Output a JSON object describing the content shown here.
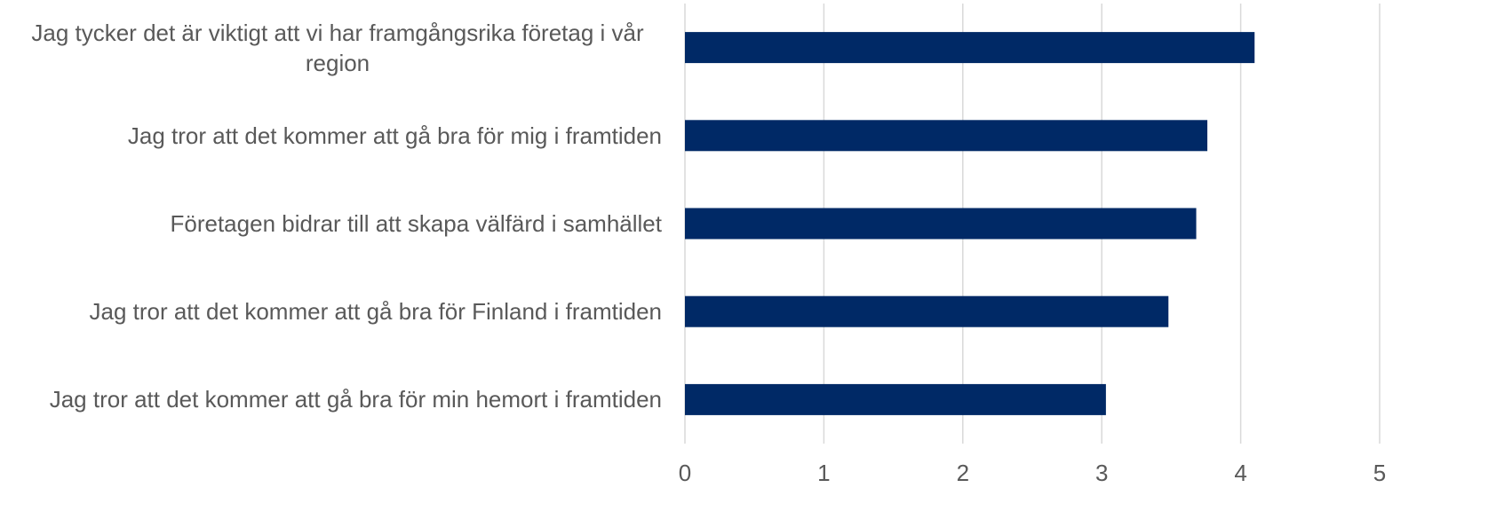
{
  "chart_data": {
    "type": "barh",
    "categories": [
      "Jag tycker det är viktigt att vi har framgångsrika företag i vår region",
      "Jag tror att det kommer att gå bra för mig i framtiden",
      "Företagen bidrar till att skapa välfärd i samhället",
      "Jag tror att det kommer att gå bra för Finland i framtiden",
      "Jag tror att det kommer att gå bra för min hemort i framtiden"
    ],
    "values": [
      4.1,
      3.76,
      3.68,
      3.48,
      3.03
    ],
    "color": "#002966",
    "xlim": [
      0,
      5
    ],
    "xticks": [
      0,
      1,
      2,
      3,
      4,
      5
    ],
    "grid": true
  }
}
